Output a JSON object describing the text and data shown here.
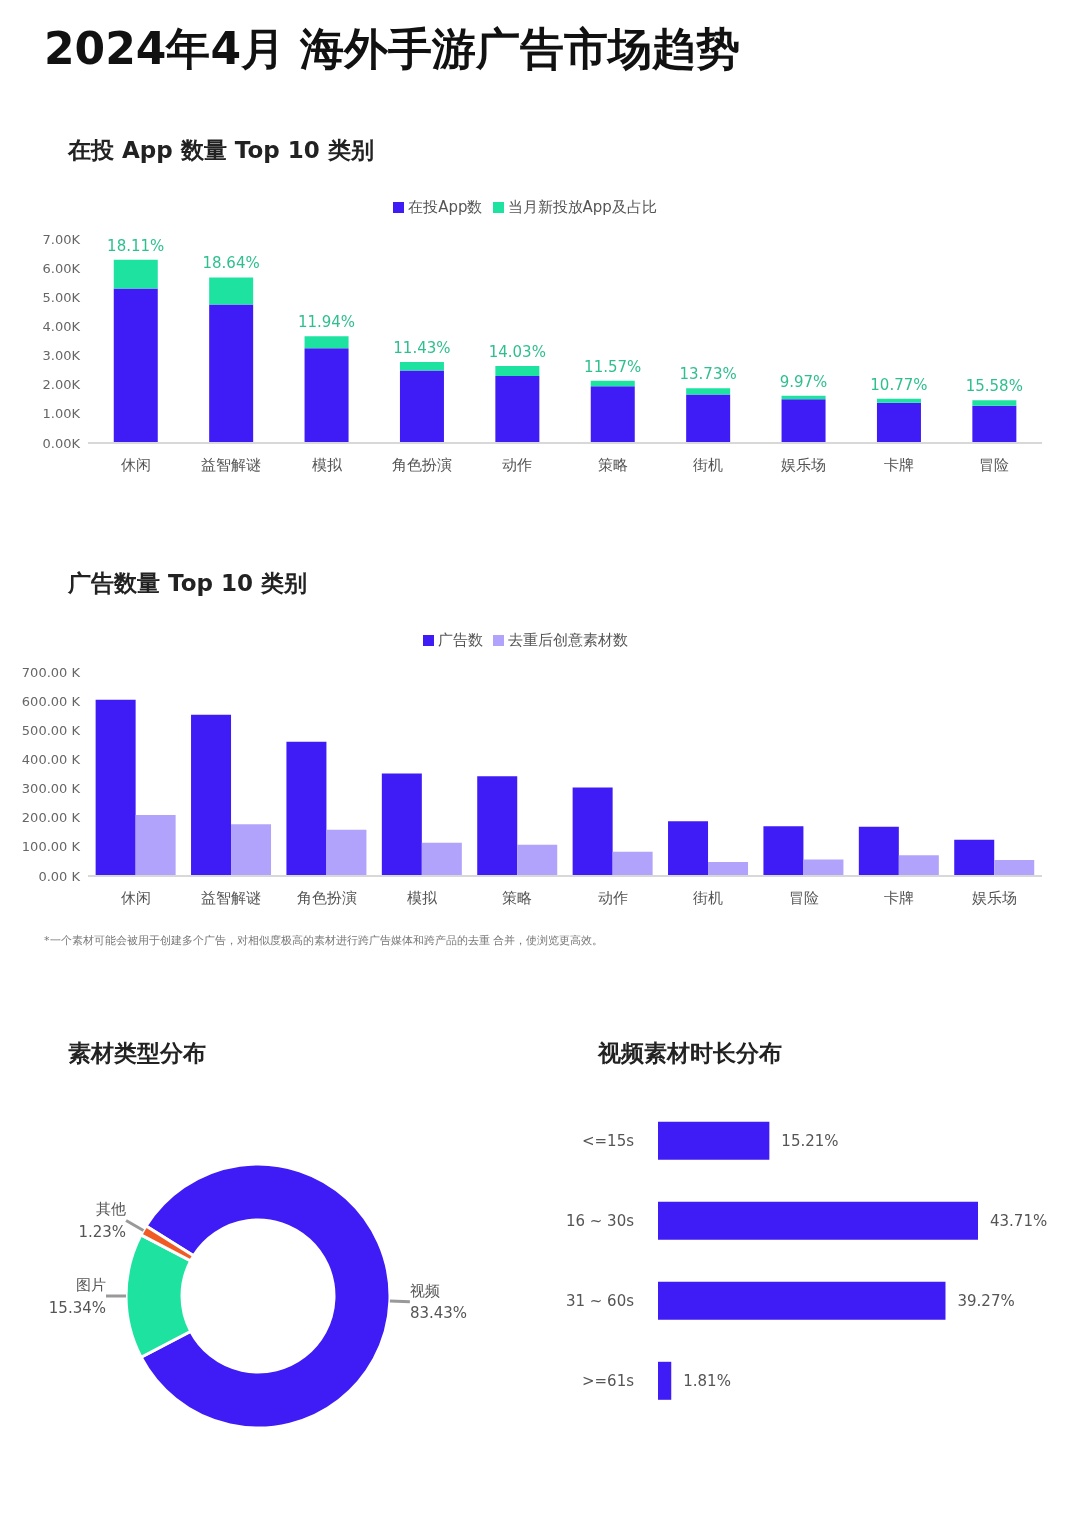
{
  "chart_data": [
    {
      "type": "bar",
      "title": "2024年4月 海外手游广告市场趋势",
      "subtitle": "在投 App 数量 Top 10 类别",
      "stacked": true,
      "legend": "top",
      "categories": [
        "休闲",
        "益智解谜",
        "模拟",
        "角色扮演",
        "动作",
        "策略",
        "街机",
        "娱乐场",
        "卡牌",
        "冒险"
      ],
      "series": [
        {
          "name": "在投App数",
          "color": "#3f1cf5",
          "values": [
            5.3,
            4.75,
            3.25,
            2.49,
            2.3,
            1.95,
            1.66,
            1.5,
            1.38,
            1.28
          ]
        },
        {
          "name": "当月新投放App及占比",
          "color": "#1ee3a0",
          "values": [
            0.99,
            0.93,
            0.41,
            0.29,
            0.34,
            0.19,
            0.22,
            0.12,
            0.14,
            0.19
          ]
        }
      ],
      "annotations": [
        {
          "text": "18.11%",
          "x": "休闲",
          "y": 6.29
        },
        {
          "text": "18.64%",
          "x": "益智解谜",
          "y": 5.68
        },
        {
          "text": "11.94%",
          "x": "模拟",
          "y": 3.66
        },
        {
          "text": "11.43%",
          "x": "角色扮演",
          "y": 2.78
        },
        {
          "text": "14.03%",
          "x": "动作",
          "y": 2.64
        },
        {
          "text": "11.57%",
          "x": "策略",
          "y": 2.14
        },
        {
          "text": "13.73%",
          "x": "街机",
          "y": 1.88
        },
        {
          "text": "9.97%",
          "x": "娱乐场",
          "y": 1.62
        },
        {
          "text": "10.77%",
          "x": "卡牌",
          "y": 1.52
        },
        {
          "text": "15.58%",
          "x": "冒险",
          "y": 1.47
        }
      ],
      "ylim": [
        0,
        7
      ],
      "yticks": [
        {
          "value": 0,
          "label": "0.00K"
        },
        {
          "value": 1,
          "label": "1.00K"
        },
        {
          "value": 2,
          "label": "2.00K"
        },
        {
          "value": 3,
          "label": "3.00K"
        },
        {
          "value": 4,
          "label": "4.00K"
        },
        {
          "value": 5,
          "label": "5.00K"
        },
        {
          "value": 6,
          "label": "6.00K"
        },
        {
          "value": 7,
          "label": "7.00K"
        }
      ]
    },
    {
      "type": "bar",
      "title": "广告数量 Top 10 类别",
      "legend": "top",
      "categories": [
        "休闲",
        "益智解谜",
        "角色扮演",
        "模拟",
        "策略",
        "动作",
        "街机",
        "冒险",
        "卡牌",
        "娱乐场"
      ],
      "series": [
        {
          "name": "广告数",
          "color": "#3f1cf5",
          "values": [
            605,
            553,
            461,
            352,
            342,
            304,
            188,
            171,
            169,
            124
          ]
        },
        {
          "name": "去重后创意素材数",
          "color": "#b1a3fb",
          "values": [
            209,
            178,
            159,
            114,
            107,
            83,
            48,
            57,
            71,
            55
          ]
        }
      ],
      "ylim": [
        0,
        700
      ],
      "yticks": [
        {
          "value": 0,
          "label": "0.00 K"
        },
        {
          "value": 100,
          "label": "100.00 K"
        },
        {
          "value": 200,
          "label": "200.00 K"
        },
        {
          "value": 300,
          "label": "300.00 K"
        },
        {
          "value": 400,
          "label": "400.00 K"
        },
        {
          "value": 500,
          "label": "500.00 K"
        },
        {
          "value": 600,
          "label": "600.00 K"
        },
        {
          "value": 700,
          "label": "700.00 K"
        }
      ],
      "annotations": [
        "*一个素材可能会被用于创建多个广告，对相似度极高的素材进行跨广告媒体和跨产品的去重 合并，使浏览更高效。"
      ]
    },
    {
      "type": "donut",
      "title": "素材类型分布",
      "categories": [
        "视频",
        "图片",
        "其他"
      ],
      "values": [
        83.43,
        15.34,
        1.23
      ],
      "colors": [
        "#3f1cf5",
        "#1ee3a0",
        "#f05a24"
      ],
      "value_labels": [
        "83.43%",
        "15.34%",
        "1.23%"
      ]
    },
    {
      "type": "bar",
      "title": "视频素材时长分布",
      "orientation": "horizontal",
      "tick_labels": "y",
      "categories": [
        "<=15s",
        "16 ~ 30s",
        "31 ~ 60s",
        ">=61s"
      ],
      "values": [
        15.21,
        43.71,
        39.27,
        1.81
      ],
      "color": "#3f1cf5",
      "value_labels": [
        "15.21%",
        "43.71%",
        "39.27%",
        "1.81%"
      ]
    }
  ]
}
